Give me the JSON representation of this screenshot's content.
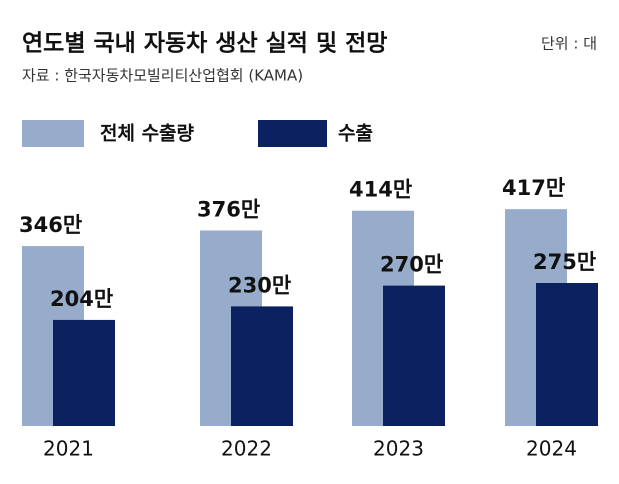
{
  "chart_data": {
    "type": "bar",
    "title": "연도별 국내 자동차 생산 실적 및 전망",
    "unit": "단위 : 대",
    "subtitle": "자료 : 한국자동차모빌리티산업협회 (KAMA)",
    "categories": [
      "2021",
      "2022",
      "2023",
      "2024"
    ],
    "series": [
      {
        "name": "전체 수출량",
        "color": "#97abcb",
        "values": [
          346,
          376,
          414,
          417
        ],
        "value_labels": [
          "346만",
          "376만",
          "414만",
          "417만"
        ]
      },
      {
        "name": "수출",
        "color": "#0c2260",
        "values": [
          204,
          230,
          270,
          275
        ],
        "value_labels": [
          "204만",
          "230만",
          "270만",
          "275만"
        ]
      }
    ]
  }
}
